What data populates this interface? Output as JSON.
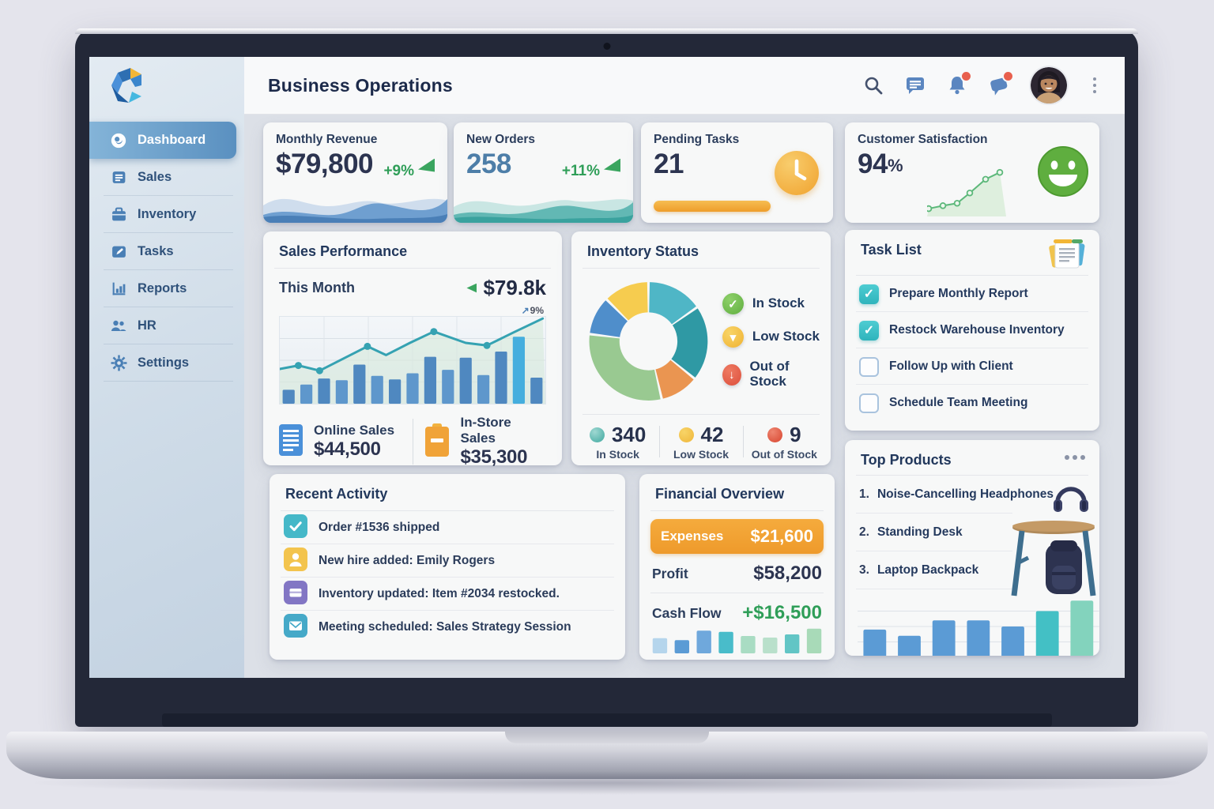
{
  "window": {
    "title": "Business Operations"
  },
  "header": {
    "icons": [
      "search-icon",
      "chat-icon",
      "bell-icon",
      "announcement-icon",
      "avatar",
      "kebab-menu"
    ]
  },
  "sidebar": {
    "items": [
      {
        "label": "Dashboard",
        "active": true
      },
      {
        "label": "Sales",
        "active": false
      },
      {
        "label": "Inventory",
        "active": false
      },
      {
        "label": "Tasks",
        "active": false
      },
      {
        "label": "Reports",
        "active": false
      },
      {
        "label": "HR",
        "active": false
      },
      {
        "label": "Settings",
        "active": false
      }
    ]
  },
  "kpis": {
    "revenue": {
      "title": "Monthly Revenue",
      "value": "$79,800",
      "delta": "+9%"
    },
    "orders": {
      "title": "New Orders",
      "value": "258",
      "delta": "+11%"
    },
    "pending": {
      "title": "Pending Tasks",
      "value": "21"
    },
    "satisfaction": {
      "title": "Customer Satisfaction",
      "value": "94",
      "unit": "%"
    }
  },
  "sales_performance": {
    "title": "Sales Performance",
    "period": "This Month",
    "period_value": "$79.8k",
    "annotation": "9%",
    "online_label": "Online Sales",
    "online_value": "$44,500",
    "instore_label": "In-Store Sales",
    "instore_value": "$35,300"
  },
  "inventory": {
    "title": "Inventory Status",
    "legend": [
      {
        "label": "In Stock"
      },
      {
        "label": "Low Stock"
      },
      {
        "label": "Out of Stock"
      }
    ],
    "stats": [
      {
        "value": "340",
        "label": "In Stock"
      },
      {
        "value": "42",
        "label": "Low Stock"
      },
      {
        "value": "9",
        "label": "Out of Stock"
      }
    ]
  },
  "task_list": {
    "title": "Task List",
    "items": [
      {
        "label": "Prepare Monthly Report",
        "checked": true
      },
      {
        "label": "Restock Warehouse Inventory",
        "checked": true
      },
      {
        "label": "Follow Up with Client",
        "checked": false
      },
      {
        "label": "Schedule Team Meeting",
        "checked": false
      }
    ]
  },
  "top_products": {
    "title": "Top Products",
    "items": [
      {
        "rank": "1.",
        "name": "Noise-Cancelling Headphones"
      },
      {
        "rank": "2.",
        "name": "Standing Desk"
      },
      {
        "rank": "3.",
        "name": "Laptop Backpack"
      }
    ]
  },
  "recent_activity": {
    "title": "Recent Activity",
    "items": [
      {
        "icon": "check-icon",
        "text": "Order #1536 shipped"
      },
      {
        "icon": "person-icon",
        "text": "New hire added: Emily Rogers"
      },
      {
        "icon": "box-icon",
        "text": "Inventory updated: Item #2034 restocked."
      },
      {
        "icon": "envelope-icon",
        "text": "Meeting scheduled: Sales Strategy Session"
      }
    ]
  },
  "financial": {
    "title": "Financial Overview",
    "expenses_label": "Expenses",
    "expenses_value": "$21,600",
    "profit_label": "Profit",
    "profit_value": "$58,200",
    "cashflow_label": "Cash Flow",
    "cashflow_value": "+$16,500"
  },
  "chart_data": {
    "sales_performance": {
      "type": "bar+line",
      "bars": [
        16,
        22,
        29,
        27,
        45,
        32,
        28,
        35,
        54,
        39,
        53,
        33,
        60,
        77,
        30
      ],
      "bar_color": "#4f88c0",
      "bar_color_alt": "#5e97cc",
      "bar_color_highlight": "#45aede",
      "line": [
        [
          0,
          40
        ],
        [
          7,
          44
        ],
        [
          15,
          38
        ],
        [
          24,
          52
        ],
        [
          33,
          66
        ],
        [
          40,
          56
        ],
        [
          49,
          70
        ],
        [
          58,
          83
        ],
        [
          70,
          70
        ],
        [
          78,
          67
        ],
        [
          88,
          82
        ],
        [
          99,
          98
        ]
      ],
      "dot_indices": [
        1,
        2,
        4,
        7,
        9
      ],
      "line_color": "#35a2b2",
      "area_color": "#d5ead9"
    },
    "inventory_donut": {
      "type": "pie",
      "segments": [
        {
          "name": "cyan",
          "value": 55,
          "color": "#4fb6c6"
        },
        {
          "name": "teal",
          "value": 74,
          "color": "#2f99a4"
        },
        {
          "name": "orange",
          "value": 38,
          "color": "#ea9551"
        },
        {
          "name": "green",
          "value": 110,
          "color": "#99c991"
        },
        {
          "name": "blue",
          "value": 38,
          "color": "#4f8ecb"
        },
        {
          "name": "yellow",
          "value": 45,
          "color": "#f6cc4f"
        }
      ]
    },
    "satisfaction_trend": {
      "type": "line",
      "points": [
        [
          2,
          16
        ],
        [
          20,
          22
        ],
        [
          38,
          27
        ],
        [
          54,
          48
        ],
        [
          74,
          76
        ],
        [
          92,
          90
        ]
      ],
      "line_color": "#5cb87a",
      "area_color": "#cdeacd"
    },
    "financial_bars": {
      "type": "bar",
      "values": [
        48,
        42,
        72,
        68,
        55,
        50,
        60,
        78
      ],
      "colors": [
        "#b5d5ec",
        "#5b9bd5",
        "#6fa8dc",
        "#49bcca",
        "#a9dcc3",
        "#b9e0cb",
        "#62c5c5",
        "#a8dab8"
      ]
    },
    "top_products_bars": {
      "type": "bar",
      "values": [
        45,
        35,
        60,
        60,
        50,
        75,
        92
      ],
      "colors": [
        "#5b9bd5",
        "#5b9bd5",
        "#5b9bd5",
        "#5b9bd5",
        "#5b9bd5",
        "#43c0c5",
        "#83d3bd"
      ]
    }
  }
}
